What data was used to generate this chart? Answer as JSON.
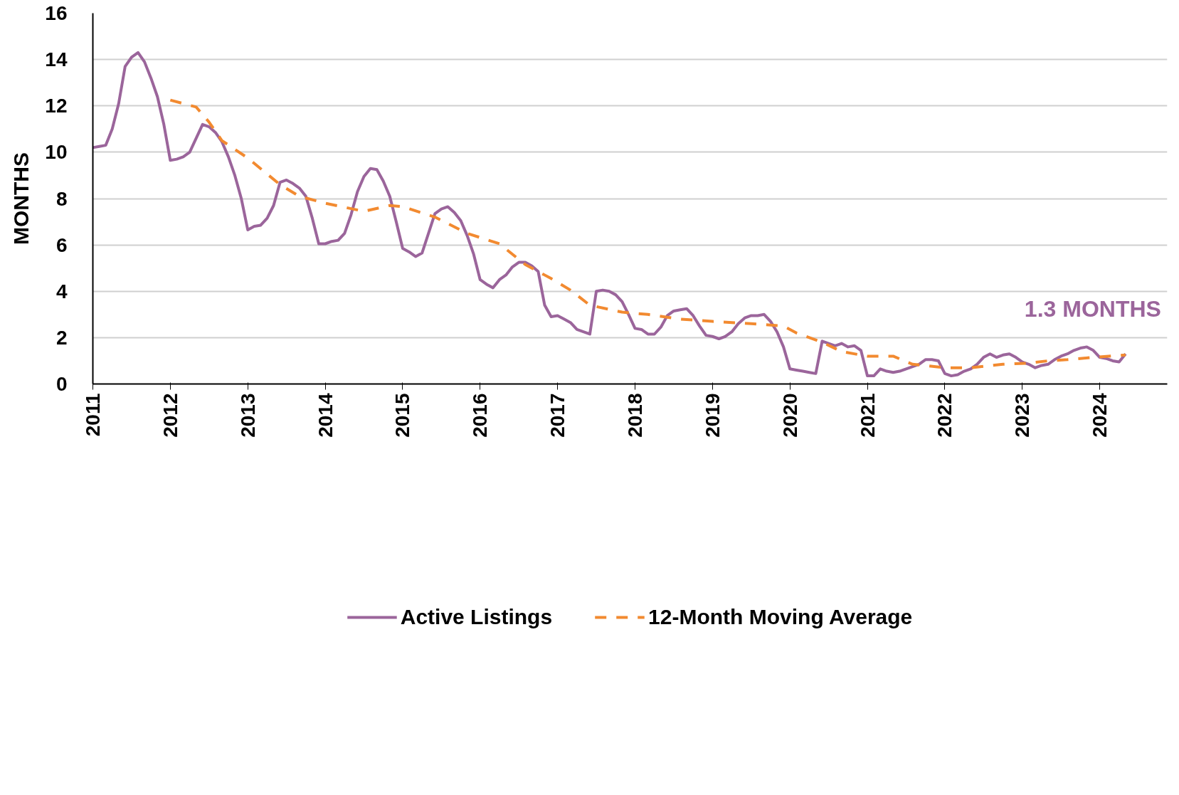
{
  "chart_data": {
    "type": "line",
    "ylabel": "MONTHS",
    "xlim": [
      "2011-01-01",
      "2024-11-15"
    ],
    "xticks": [
      "2011",
      "2012",
      "2013",
      "2014",
      "2015",
      "2016",
      "2017",
      "2018",
      "2019",
      "2020",
      "2021",
      "2022",
      "2023",
      "2024"
    ],
    "ylim": [
      0,
      16
    ],
    "yticks": [
      0,
      2,
      4,
      6,
      8,
      10,
      12,
      14,
      16
    ],
    "grid": "y",
    "legend": "bottom",
    "series": [
      {
        "name": "Active Listings",
        "color": "#9b659b",
        "line_style": "solid",
        "x": [
          "2011-01",
          "2011-02",
          "2011-03",
          "2011-04",
          "2011-05",
          "2011-06",
          "2011-07",
          "2011-08",
          "2011-09",
          "2011-10",
          "2011-11",
          "2011-12",
          "2012-01",
          "2012-02",
          "2012-03",
          "2012-04",
          "2012-05",
          "2012-06",
          "2012-07",
          "2012-08",
          "2012-09",
          "2012-10",
          "2012-11",
          "2012-12",
          "2013-01",
          "2013-02",
          "2013-03",
          "2013-04",
          "2013-05",
          "2013-06",
          "2013-07",
          "2013-08",
          "2013-09",
          "2013-10",
          "2013-11",
          "2013-12",
          "2014-01",
          "2014-02",
          "2014-03",
          "2014-04",
          "2014-05",
          "2014-06",
          "2014-07",
          "2014-08",
          "2014-09",
          "2014-10",
          "2014-11",
          "2014-12",
          "2015-01",
          "2015-02",
          "2015-03",
          "2015-04",
          "2015-05",
          "2015-06",
          "2015-07",
          "2015-08",
          "2015-09",
          "2015-10",
          "2015-11",
          "2015-12",
          "2016-01",
          "2016-02",
          "2016-03",
          "2016-04",
          "2016-05",
          "2016-06",
          "2016-07",
          "2016-08",
          "2016-09",
          "2016-10",
          "2016-11",
          "2016-12",
          "2017-01",
          "2017-02",
          "2017-03",
          "2017-04",
          "2017-05",
          "2017-06",
          "2017-07",
          "2017-08",
          "2017-09",
          "2017-10",
          "2017-11",
          "2017-12",
          "2018-01",
          "2018-02",
          "2018-03",
          "2018-04",
          "2018-05",
          "2018-06",
          "2018-07",
          "2018-08",
          "2018-09",
          "2018-10",
          "2018-11",
          "2018-12",
          "2019-01",
          "2019-02",
          "2019-03",
          "2019-04",
          "2019-05",
          "2019-06",
          "2019-07",
          "2019-08",
          "2019-09",
          "2019-10",
          "2019-11",
          "2019-12",
          "2020-01",
          "2020-02",
          "2020-03",
          "2020-04",
          "2020-05",
          "2020-06",
          "2020-07",
          "2020-08",
          "2020-09",
          "2020-10",
          "2020-11",
          "2020-12",
          "2021-01",
          "2021-02",
          "2021-03",
          "2021-04",
          "2021-05",
          "2021-06",
          "2021-07",
          "2021-08",
          "2021-09",
          "2021-10",
          "2021-11",
          "2021-12",
          "2022-01",
          "2022-02",
          "2022-03",
          "2022-04",
          "2022-05",
          "2022-06",
          "2022-07",
          "2022-08",
          "2022-09",
          "2022-10",
          "2022-11",
          "2022-12",
          "2023-01",
          "2023-02",
          "2023-03",
          "2023-04",
          "2023-05",
          "2023-06",
          "2023-07",
          "2023-08",
          "2023-09",
          "2023-10",
          "2023-11",
          "2023-12",
          "2024-01",
          "2024-02",
          "2024-03",
          "2024-04",
          "2024-05"
        ],
        "values": [
          10.2,
          10.25,
          10.3,
          11.0,
          12.1,
          13.7,
          14.1,
          14.3,
          13.9,
          13.2,
          12.4,
          11.2,
          9.65,
          9.7,
          9.8,
          10.0,
          10.6,
          11.2,
          11.1,
          10.85,
          10.45,
          9.8,
          9.0,
          8.0,
          6.65,
          6.8,
          6.85,
          7.15,
          7.7,
          8.7,
          8.8,
          8.65,
          8.45,
          8.1,
          7.15,
          6.05,
          6.05,
          6.15,
          6.2,
          6.5,
          7.3,
          8.3,
          8.95,
          9.3,
          9.25,
          8.75,
          8.1,
          7.0,
          5.85,
          5.7,
          5.5,
          5.65,
          6.5,
          7.35,
          7.55,
          7.65,
          7.4,
          7.05,
          6.4,
          5.6,
          4.5,
          4.3,
          4.15,
          4.5,
          4.7,
          5.05,
          5.25,
          5.25,
          5.1,
          4.85,
          3.4,
          2.9,
          2.95,
          2.8,
          2.65,
          2.35,
          2.25,
          2.15,
          4.0,
          4.05,
          4.0,
          3.85,
          3.55,
          3.0,
          2.4,
          2.35,
          2.15,
          2.15,
          2.45,
          2.95,
          3.15,
          3.2,
          3.25,
          2.95,
          2.5,
          2.1,
          2.05,
          1.95,
          2.05,
          2.25,
          2.6,
          2.85,
          2.95,
          2.95,
          3.0,
          2.7,
          2.25,
          1.6,
          0.65,
          0.6,
          0.55,
          0.5,
          0.45,
          1.85,
          1.75,
          1.65,
          1.75,
          1.6,
          1.65,
          1.45,
          0.35,
          0.35,
          0.65,
          0.55,
          0.5,
          0.55,
          0.65,
          0.75,
          0.85,
          1.05,
          1.05,
          1.0,
          0.45,
          0.35,
          0.4,
          0.55,
          0.65,
          0.85,
          1.15,
          1.3,
          1.15,
          1.25,
          1.3,
          1.15,
          0.95,
          0.85,
          0.7,
          0.8,
          0.85,
          1.05,
          1.2,
          1.3,
          1.45,
          1.55,
          1.6,
          1.45,
          1.15,
          1.1,
          1.0,
          0.95,
          1.3
        ]
      },
      {
        "name": "12-Month Moving Average",
        "color": "#f28a30",
        "line_style": "dashed",
        "x": [
          "2012-01",
          "2012-03",
          "2012-05",
          "2012-07",
          "2012-09",
          "2013-01",
          "2013-06",
          "2013-09",
          "2014-01",
          "2014-07",
          "2014-11",
          "2015-01",
          "2015-06",
          "2015-11",
          "2016-04",
          "2016-08",
          "2016-12",
          "2017-03",
          "2017-06",
          "2017-11",
          "2018-03",
          "2018-08",
          "2019-01",
          "2019-07",
          "2019-12",
          "2020-02",
          "2020-06",
          "2020-09",
          "2021-01",
          "2021-05",
          "2021-08",
          "2022-01",
          "2022-05",
          "2022-10",
          "2023-02",
          "2023-05",
          "2023-08",
          "2023-12",
          "2024-05"
        ],
        "values": [
          12.25,
          12.1,
          11.95,
          11.3,
          10.5,
          9.75,
          8.6,
          8.1,
          7.8,
          7.45,
          7.7,
          7.65,
          7.2,
          6.5,
          6.05,
          5.15,
          4.55,
          4.05,
          3.4,
          3.1,
          3.0,
          2.8,
          2.7,
          2.6,
          2.5,
          2.2,
          1.8,
          1.4,
          1.2,
          1.2,
          0.85,
          0.7,
          0.7,
          0.85,
          0.9,
          1.0,
          1.05,
          1.15,
          1.25
        ]
      }
    ],
    "annotations": [
      {
        "text": "1.3 MONTHS",
        "x": "2024-05",
        "y": 1.3
      }
    ]
  }
}
